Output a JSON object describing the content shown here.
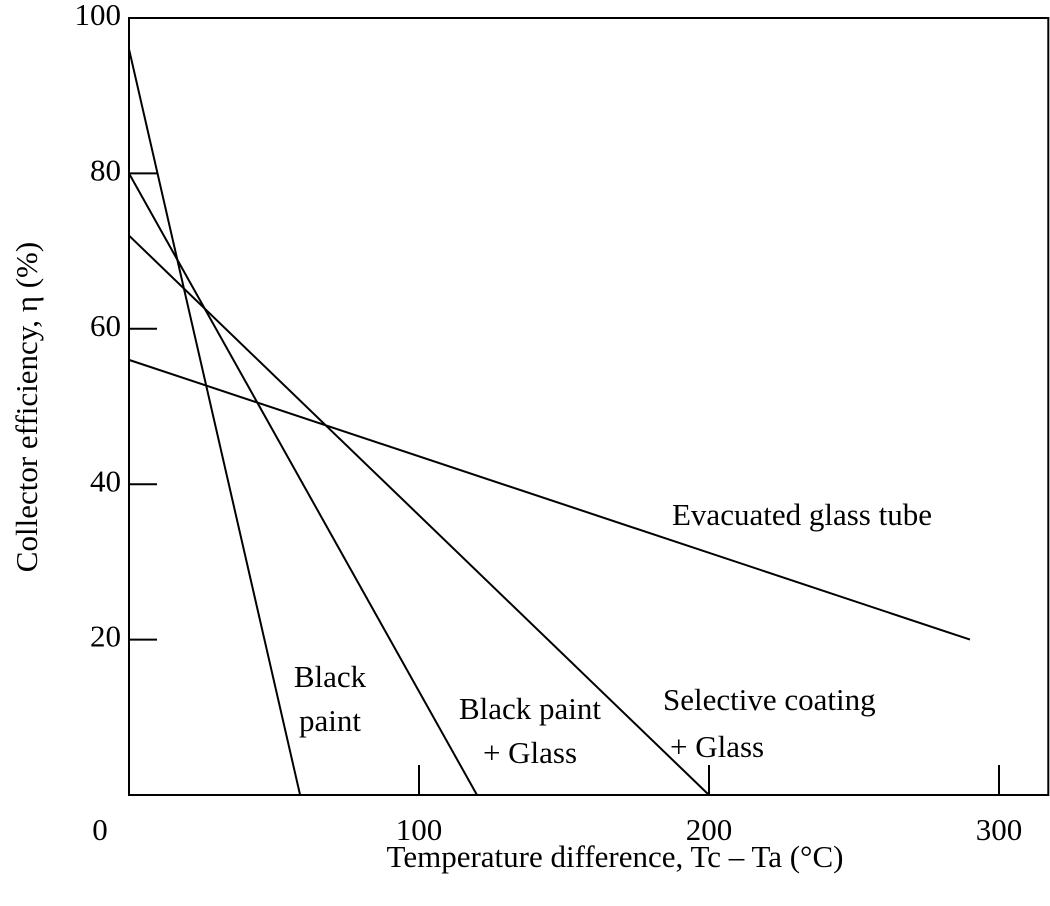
{
  "chart_data": {
    "type": "line",
    "x_label": "Temperature difference, Tc – Ta (°C)",
    "y_label": "Collector efficiency, η (%)",
    "xlim": [
      0,
      317
    ],
    "ylim": [
      0,
      100
    ],
    "xticks": [
      0,
      100,
      200,
      300
    ],
    "yticks": [
      20,
      40,
      60,
      80,
      100
    ],
    "series": [
      {
        "label": [
          "Black",
          "paint"
        ],
        "color": "#000000",
        "x": [
          0,
          59
        ],
        "values": [
          96,
          0
        ]
      },
      {
        "label": [
          "Black paint",
          "+ Glass"
        ],
        "color": "#000000",
        "x": [
          0,
          120
        ],
        "values": [
          80,
          0
        ]
      },
      {
        "label": [
          "Selective coating",
          "+ Glass"
        ],
        "color": "#000000",
        "x": [
          0,
          200
        ],
        "values": [
          72,
          0
        ]
      },
      {
        "label": [
          "Evacuated glass tube"
        ],
        "color": "#000000",
        "x": [
          0,
          290
        ],
        "values": [
          56,
          20
        ]
      }
    ]
  }
}
